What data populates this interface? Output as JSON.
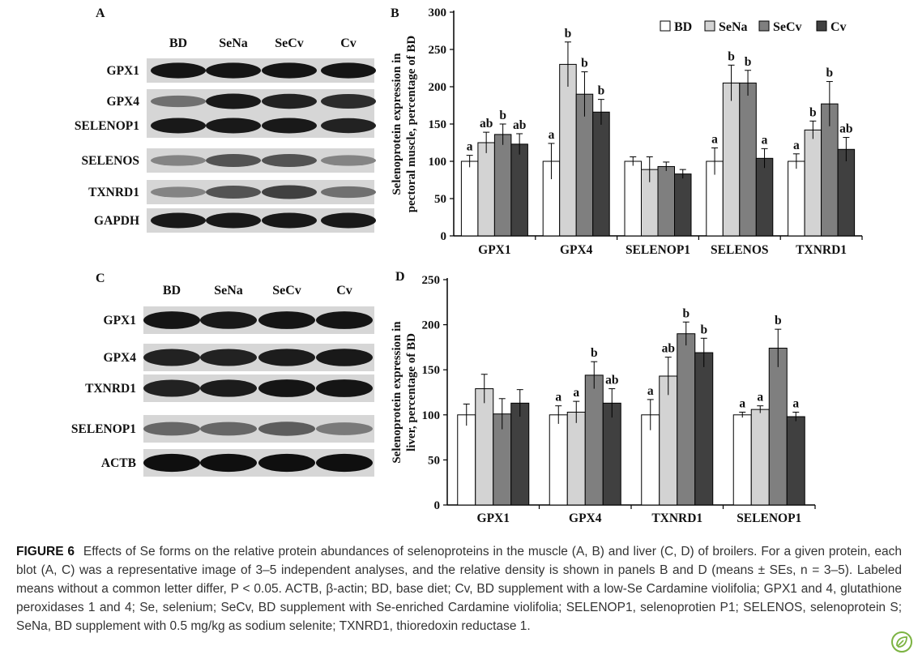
{
  "figure": {
    "panels": {
      "A": {
        "label": "A",
        "lanes": [
          "BD",
          "SeNa",
          "SeCv",
          "Cv"
        ],
        "rows": [
          {
            "name": "GPX1",
            "intensity": [
              0.92,
              0.92,
              0.92,
              0.92
            ]
          },
          {
            "name": "GPX4",
            "intensity": [
              0.45,
              0.9,
              0.85,
              0.8
            ]
          },
          {
            "name": "SELENOP1",
            "intensity": [
              0.9,
              0.9,
              0.9,
              0.85
            ]
          },
          {
            "name": "SELENOS",
            "intensity": [
              0.35,
              0.6,
              0.6,
              0.35
            ]
          },
          {
            "name": "TXNRD1",
            "intensity": [
              0.35,
              0.6,
              0.7,
              0.45
            ]
          },
          {
            "name": "GAPDH",
            "intensity": [
              0.9,
              0.9,
              0.9,
              0.9
            ]
          }
        ]
      },
      "C": {
        "label": "C",
        "lanes": [
          "BD",
          "SeNa",
          "SeCv",
          "Cv"
        ],
        "rows": [
          {
            "name": "GPX1",
            "intensity": [
              0.92,
              0.9,
              0.92,
              0.92
            ]
          },
          {
            "name": "GPX4",
            "intensity": [
              0.85,
              0.85,
              0.88,
              0.9
            ]
          },
          {
            "name": "TXNRD1",
            "intensity": [
              0.85,
              0.88,
              0.92,
              0.92
            ]
          },
          {
            "name": "SELENOP1",
            "intensity": [
              0.5,
              0.5,
              0.55,
              0.4
            ]
          },
          {
            "name": "ACTB",
            "intensity": [
              0.95,
              0.95,
              0.95,
              0.95
            ]
          }
        ]
      }
    },
    "legend": {
      "BD": "BD",
      "SeNa": "SeNa",
      "SeCv": "SeCv",
      "Cv": "Cv"
    }
  },
  "chart_data": [
    {
      "panel": "B",
      "type": "bar",
      "ylabel_line1": "Selenoprotein expression in",
      "ylabel_line2": "pectoral muscle, percentage of BD",
      "ylim": [
        0,
        300
      ],
      "yticks": [
        0,
        50,
        100,
        150,
        200,
        250,
        300
      ],
      "categories": [
        "GPX1",
        "GPX4",
        "SELENOP1",
        "SELENOS",
        "TXNRD1"
      ],
      "legend_position": "top-right",
      "series": [
        {
          "name": "BD",
          "color": "#ffffff",
          "values": [
            100,
            100,
            100,
            100,
            100
          ],
          "errors": [
            8,
            24,
            6,
            18,
            10
          ],
          "letters": [
            "a",
            "a",
            "",
            "a",
            "a"
          ]
        },
        {
          "name": "SeNa",
          "color": "#d3d3d3",
          "values": [
            125,
            230,
            89,
            205,
            142
          ],
          "errors": [
            14,
            30,
            17,
            24,
            12
          ],
          "letters": [
            "ab",
            "b",
            "",
            "b",
            "b"
          ]
        },
        {
          "name": "SeCv",
          "color": "#7f7f7f",
          "values": [
            136,
            190,
            93,
            205,
            177
          ],
          "errors": [
            14,
            30,
            6,
            17,
            30
          ],
          "letters": [
            "b",
            "b",
            "",
            "b",
            "b"
          ]
        },
        {
          "name": "Cv",
          "color": "#404040",
          "values": [
            123,
            166,
            83,
            104,
            116
          ],
          "errors": [
            14,
            17,
            6,
            13,
            16
          ],
          "letters": [
            "ab",
            "b",
            "",
            "a",
            "ab"
          ]
        }
      ]
    },
    {
      "panel": "D",
      "type": "bar",
      "ylabel_line1": "Selenoprotein expression in",
      "ylabel_line2": "liver, percentage of BD",
      "ylim": [
        0,
        250
      ],
      "yticks": [
        0,
        50,
        100,
        150,
        200,
        250
      ],
      "categories": [
        "GPX1",
        "GPX4",
        "TXNRD1",
        "SELENOP1"
      ],
      "series": [
        {
          "name": "BD",
          "color": "#ffffff",
          "values": [
            100,
            100,
            100,
            100
          ],
          "errors": [
            12,
            10,
            17,
            3
          ],
          "letters": [
            "",
            "a",
            "a",
            "a"
          ]
        },
        {
          "name": "SeNa",
          "color": "#d3d3d3",
          "values": [
            129,
            103,
            143,
            106
          ],
          "errors": [
            16,
            12,
            21,
            4
          ],
          "letters": [
            "",
            "a",
            "ab",
            "a"
          ]
        },
        {
          "name": "SeCv",
          "color": "#7f7f7f",
          "values": [
            101,
            144,
            190,
            174
          ],
          "errors": [
            17,
            15,
            13,
            21
          ],
          "letters": [
            "",
            "b",
            "b",
            "b"
          ]
        },
        {
          "name": "Cv",
          "color": "#404040",
          "values": [
            113,
            113,
            169,
            98
          ],
          "errors": [
            15,
            16,
            16,
            5
          ],
          "letters": [
            "",
            "ab",
            "b",
            "a"
          ]
        }
      ]
    }
  ],
  "caption": {
    "label": "FIGURE 6",
    "text": "Effects of Se forms on the relative protein abundances of selenoproteins in the muscle (A, B) and liver (C, D) of broilers. For a given protein, each blot (A, C) was a representative image of 3–5 independent analyses, and the relative density is shown in panels B and D (means ± SEs, n = 3–5). Labeled means without a common letter differ, P < 0.05. ACTB, β-actin; BD, base diet; Cv, BD supplement with a low-Se Cardamine violifolia; GPX1 and 4, glutathione peroxidases 1 and 4; Se, selenium; SeCv, BD supplement with Se-enriched Cardamine violifolia; SELENOP1, selenoprotien P1; SELENOS, selenoprotein S; SeNa, BD supplement with 0.5 mg/kg as sodium selenite; TXNRD1, thioredoxin reductase 1."
  },
  "logo_icon": "leaf-logo-icon"
}
